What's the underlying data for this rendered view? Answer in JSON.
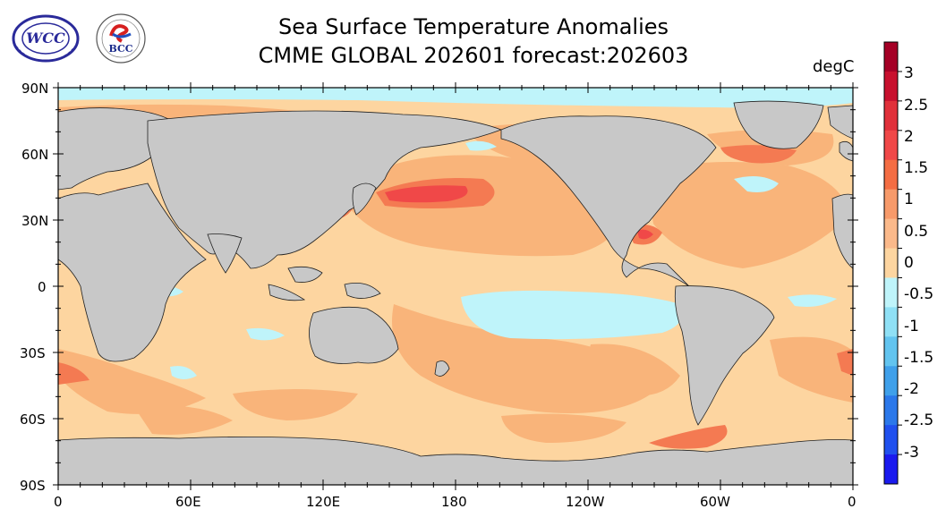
{
  "header": {
    "title_line1": "Sea Surface Temperature Anomalies",
    "title_line2": "CMME GLOBAL 202601 forecast:202603",
    "unit": "degC"
  },
  "logos": [
    {
      "name": "wmo-logo",
      "text": "WCC"
    },
    {
      "name": "bcc-logo",
      "text": "BCC"
    }
  ],
  "map": {
    "lat_labels": [
      "90N",
      "60N",
      "30N",
      "0",
      "30S",
      "60S",
      "90S"
    ],
    "lon_labels": [
      "0",
      "60E",
      "120E",
      "180",
      "120W",
      "60W",
      "0"
    ]
  },
  "colorbar": {
    "labels": [
      "3",
      "2.5",
      "2",
      "1.5",
      "1",
      "0.5",
      "0",
      "-0.5",
      "-1",
      "-1.5",
      "-2",
      "-2.5",
      "-3"
    ],
    "colors": [
      "#a50026",
      "#c8102e",
      "#e0303a",
      "#f04848",
      "#f46d43",
      "#f79a6a",
      "#fbb98a",
      "#fdd5a0",
      "#bff4fa",
      "#8fe0f5",
      "#62c4ef",
      "#3fa0ea",
      "#2b78ea",
      "#2050ee",
      "#1a1aee"
    ]
  }
}
